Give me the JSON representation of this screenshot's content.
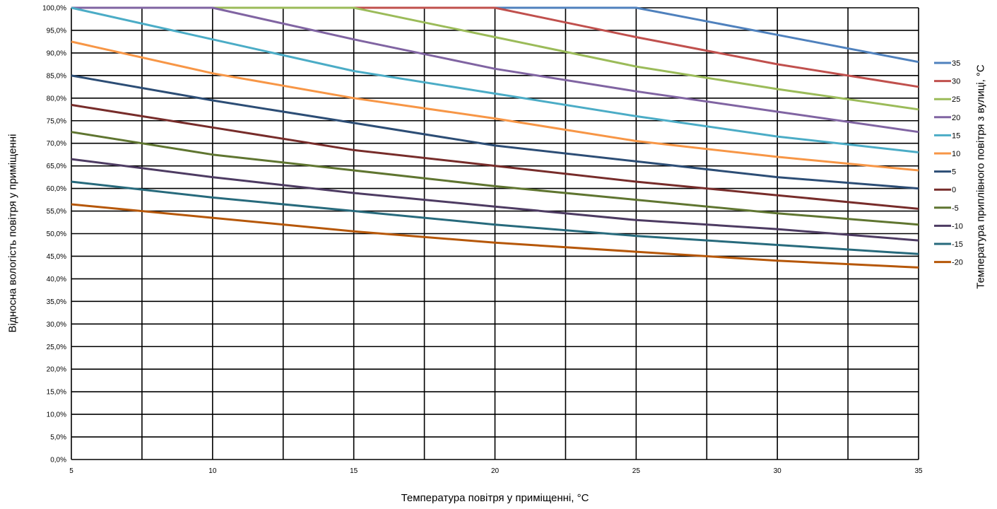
{
  "chart_data": {
    "type": "line",
    "title": "",
    "xlabel": "Температура повітря у приміщенні, °C",
    "ylabel": "Відносна вологість повітря у приміщенні",
    "legend_title": "Температура приплівного повітря з вулиці, °C",
    "legend_position": "right",
    "grid": true,
    "xlim": [
      5,
      35
    ],
    "ylim": [
      0,
      100
    ],
    "x_ticks": [
      "5",
      "10",
      "15",
      "20",
      "25",
      "30",
      "35"
    ],
    "y_ticks": [
      "0,0%",
      "5,0%",
      "10,0%",
      "15,0%",
      "20,0%",
      "25,0%",
      "30,0%",
      "35,0%",
      "40,0%",
      "45,0%",
      "50,0%",
      "55,0%",
      "60,0%",
      "65,0%",
      "70,0%",
      "75,0%",
      "80,0%",
      "85,0%",
      "90,0%",
      "95,0%",
      "100,0%"
    ],
    "x": [
      5,
      10,
      15,
      20,
      25,
      30,
      35
    ],
    "series": [
      {
        "name": "35",
        "color": "#4F81BD",
        "values": [
          100,
          100,
          100,
          100,
          100,
          94,
          88
        ]
      },
      {
        "name": "30",
        "color": "#C0504D",
        "values": [
          100,
          100,
          100,
          100,
          93.5,
          87.5,
          82.5
        ]
      },
      {
        "name": "25",
        "color": "#9BBB59",
        "values": [
          100,
          100,
          100,
          93.5,
          87,
          82,
          77.5
        ]
      },
      {
        "name": "20",
        "color": "#8064A2",
        "values": [
          100,
          100,
          93,
          86.5,
          81.5,
          77,
          72.5
        ]
      },
      {
        "name": "15",
        "color": "#4BACC6",
        "values": [
          100,
          93,
          86,
          81,
          76,
          71.5,
          68
        ]
      },
      {
        "name": "10",
        "color": "#F79646",
        "values": [
          92.5,
          85.5,
          80,
          75.5,
          70.5,
          67,
          64
        ]
      },
      {
        "name": "5",
        "color": "#2C4D75",
        "values": [
          85,
          79.5,
          74.5,
          69.5,
          66,
          62.5,
          60
        ]
      },
      {
        "name": "0",
        "color": "#772C2A",
        "values": [
          78.5,
          73.5,
          68.5,
          65,
          61.5,
          58.5,
          55.5
        ]
      },
      {
        "name": "-5",
        "color": "#5F7530",
        "values": [
          72.5,
          67.5,
          64,
          60.5,
          57.5,
          54.5,
          52
        ]
      },
      {
        "name": "-10",
        "color": "#4D3B62",
        "values": [
          66.5,
          62.5,
          59,
          56,
          53,
          51,
          48.5
        ]
      },
      {
        "name": "-15",
        "color": "#276A7C",
        "values": [
          61.5,
          58,
          55,
          52,
          49.5,
          47.5,
          45.5
        ]
      },
      {
        "name": "-20",
        "color": "#B65708",
        "values": [
          56.5,
          53.5,
          50.5,
          48,
          46,
          44,
          42.5
        ]
      }
    ]
  }
}
